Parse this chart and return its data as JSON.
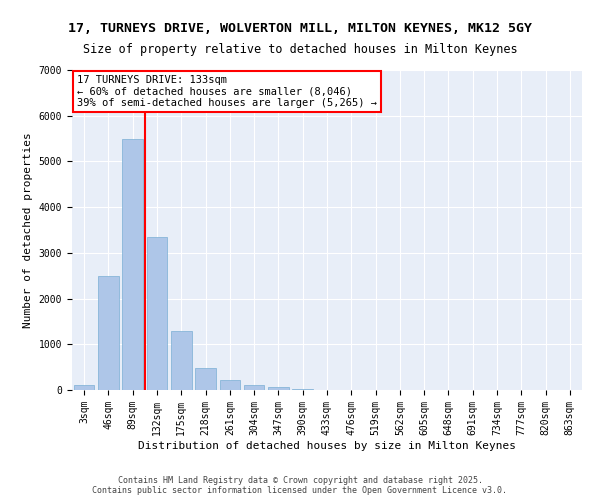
{
  "title_line1": "17, TURNEYS DRIVE, WOLVERTON MILL, MILTON KEYNES, MK12 5GY",
  "title_line2": "Size of property relative to detached houses in Milton Keynes",
  "xlabel": "Distribution of detached houses by size in Milton Keynes",
  "ylabel": "Number of detached properties",
  "categories": [
    "3sqm",
    "46sqm",
    "89sqm",
    "132sqm",
    "175sqm",
    "218sqm",
    "261sqm",
    "304sqm",
    "347sqm",
    "390sqm",
    "433sqm",
    "476sqm",
    "519sqm",
    "562sqm",
    "605sqm",
    "648sqm",
    "691sqm",
    "734sqm",
    "777sqm",
    "820sqm",
    "863sqm"
  ],
  "values": [
    100,
    2500,
    5500,
    3350,
    1300,
    480,
    220,
    100,
    55,
    30,
    5,
    0,
    0,
    0,
    0,
    0,
    0,
    0,
    0,
    0,
    0
  ],
  "bar_color": "#aec6e8",
  "bar_edge_color": "#7aafd4",
  "vline_color": "red",
  "vline_x_idx": 2.5,
  "annotation_title": "17 TURNEYS DRIVE: 133sqm",
  "annotation_line2": "← 60% of detached houses are smaller (8,046)",
  "annotation_line3": "39% of semi-detached houses are larger (5,265) →",
  "ylim": [
    0,
    7000
  ],
  "yticks": [
    0,
    1000,
    2000,
    3000,
    4000,
    5000,
    6000,
    7000
  ],
  "background_color": "#e8eef8",
  "grid_color": "white",
  "footer": "Contains HM Land Registry data © Crown copyright and database right 2025.\nContains public sector information licensed under the Open Government Licence v3.0.",
  "title_fontsize": 9.5,
  "subtitle_fontsize": 8.5,
  "axis_label_fontsize": 8,
  "tick_fontsize": 7,
  "annotation_fontsize": 7.5,
  "footer_fontsize": 6
}
